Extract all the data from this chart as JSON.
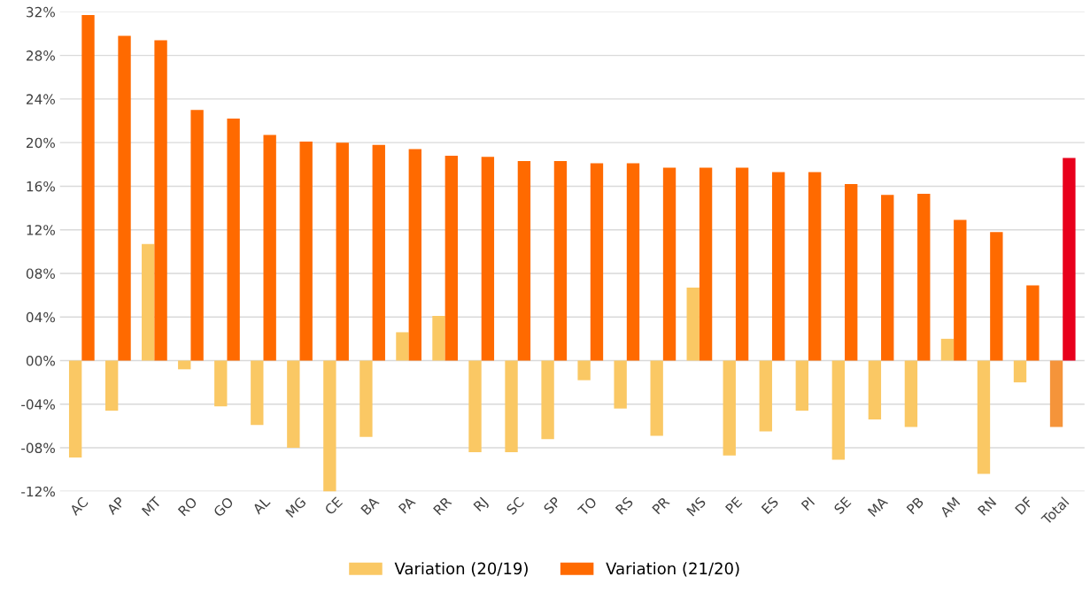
{
  "chart_data": {
    "type": "bar",
    "categories": [
      "AC",
      "AP",
      "MT",
      "RO",
      "GO",
      "AL",
      "MG",
      "CE",
      "BA",
      "PA",
      "RR",
      "RJ",
      "SC",
      "SP",
      "TO",
      "RS",
      "PR",
      "MS",
      "PE",
      "ES",
      "PI",
      "SE",
      "MA",
      "PB",
      "AM",
      "RN",
      "DF",
      "Total"
    ],
    "series": [
      {
        "name": "Variation (20/19)",
        "color": "#fac864",
        "colors": [
          "#fac864",
          "#fac864",
          "#fac864",
          "#fac864",
          "#fac864",
          "#fac864",
          "#fac864",
          "#fac864",
          "#fac864",
          "#fac864",
          "#fac864",
          "#fac864",
          "#fac864",
          "#fac864",
          "#fac864",
          "#fac864",
          "#fac864",
          "#fac864",
          "#fac864",
          "#fac864",
          "#fac864",
          "#fac864",
          "#fac864",
          "#fac864",
          "#fac864",
          "#fac864",
          "#fac864",
          "#f5943a"
        ],
        "values": [
          -8.9,
          -4.6,
          10.7,
          -0.8,
          -4.2,
          -5.9,
          -8.0,
          -12.0,
          -7.0,
          2.6,
          4.1,
          -8.4,
          -8.4,
          -7.2,
          -1.8,
          -4.4,
          -6.9,
          6.7,
          -8.7,
          -6.5,
          -4.6,
          -9.1,
          -5.4,
          -6.1,
          2.0,
          -10.4,
          -2.0,
          -6.1
        ]
      },
      {
        "name": "Variation (21/20)",
        "color": "#ff6a00",
        "colors": [
          "#ff6a00",
          "#ff6a00",
          "#ff6a00",
          "#ff6a00",
          "#ff6a00",
          "#ff6a00",
          "#ff6a00",
          "#ff6a00",
          "#ff6a00",
          "#ff6a00",
          "#ff6a00",
          "#ff6a00",
          "#ff6a00",
          "#ff6a00",
          "#ff6a00",
          "#ff6a00",
          "#ff6a00",
          "#ff6a00",
          "#ff6a00",
          "#ff6a00",
          "#ff6a00",
          "#ff6a00",
          "#ff6a00",
          "#ff6a00",
          "#ff6a00",
          "#ff6a00",
          "#ff6a00",
          "#e8001c"
        ],
        "values": [
          31.7,
          29.8,
          29.4,
          23.0,
          22.2,
          20.7,
          20.1,
          20.0,
          19.8,
          19.4,
          18.8,
          18.7,
          18.3,
          18.3,
          18.1,
          18.1,
          17.7,
          17.7,
          17.7,
          17.3,
          17.3,
          16.2,
          15.2,
          15.3,
          12.9,
          11.8,
          6.9,
          18.6
        ]
      }
    ],
    "ylim": [
      -12,
      32
    ],
    "yticks": [
      {
        "value": 32,
        "label": "32%"
      },
      {
        "value": 28,
        "label": "28%"
      },
      {
        "value": 24,
        "label": "24%"
      },
      {
        "value": 20,
        "label": "20%"
      },
      {
        "value": 16,
        "label": "16%"
      },
      {
        "value": 12,
        "label": "12%"
      },
      {
        "value": 8,
        "label": "08%"
      },
      {
        "value": 4,
        "label": "04%"
      },
      {
        "value": 0,
        "label": "00%"
      },
      {
        "value": -4,
        "label": "-04%"
      },
      {
        "value": -8,
        "label": "-08%"
      },
      {
        "value": -12,
        "label": "-12%"
      }
    ],
    "grid": "y",
    "legend": "bottom"
  }
}
